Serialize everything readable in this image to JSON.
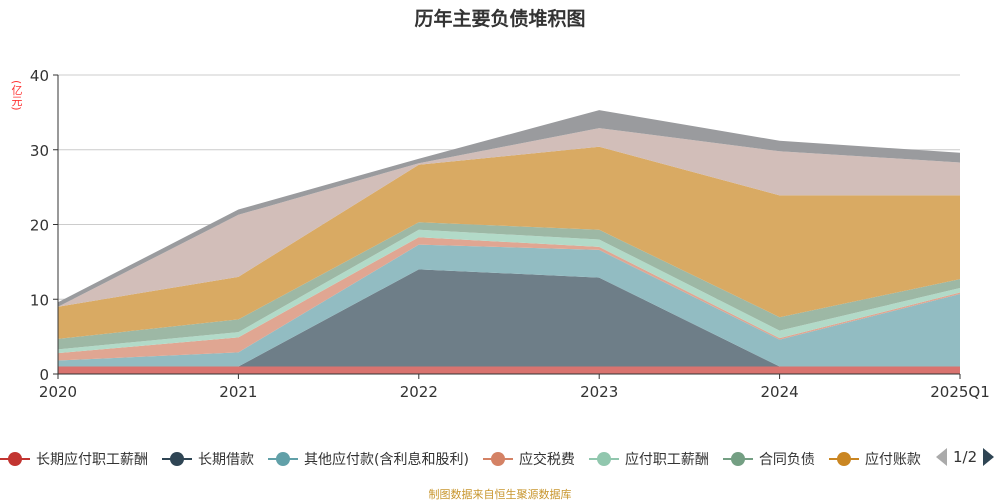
{
  "chart_data": {
    "type": "area",
    "stacked": true,
    "title": "历年主要负债堆积图",
    "ylabel": "(亿元)",
    "xlabel": "",
    "ylim": [
      0,
      40
    ],
    "yticks": [
      "0",
      "10",
      "20",
      "30",
      "40"
    ],
    "categories": [
      "2020",
      "2021",
      "2022",
      "2023",
      "2024",
      "2025Q1"
    ],
    "grid": true,
    "legend_position": "bottom",
    "series": [
      {
        "name": "长期应付职工薪酬",
        "color": "#c23531",
        "fill": "#d9736f",
        "values": [
          1.0,
          1.0,
          1.0,
          1.0,
          1.0,
          1.0
        ]
      },
      {
        "name": "长期借款",
        "color": "#2f4554",
        "fill": "#6e7e88",
        "values": [
          0,
          0,
          13.0,
          11.9,
          0,
          0
        ]
      },
      {
        "name": "其他应付款(含利息和股利)",
        "color": "#61a0a8",
        "fill": "#92bcc2",
        "values": [
          0.8,
          1.9,
          3.3,
          3.7,
          3.6,
          9.7
        ]
      },
      {
        "name": "应交税费",
        "color": "#d48265",
        "fill": "#e0a692",
        "values": [
          1.0,
          2.0,
          1.0,
          0.4,
          0.2,
          0.2
        ]
      },
      {
        "name": "应付职工薪酬",
        "color": "#91c7ae",
        "fill": "#b2dac8",
        "values": [
          0.5,
          0.7,
          1.0,
          1.0,
          1.0,
          0.6
        ]
      },
      {
        "name": "合同负债",
        "color": "#749f83",
        "fill": "#9db8a5",
        "values": [
          1.4,
          1.7,
          1.0,
          1.3,
          1.8,
          1.2
        ]
      },
      {
        "name": "应付账款",
        "color": "#ca8622",
        "fill": "#d9aa63",
        "values": [
          4.3,
          5.7,
          7.7,
          11.1,
          16.3,
          11.2
        ]
      },
      {
        "name": "",
        "color": "#bda29a",
        "fill": "#d2beb9",
        "values": [
          0,
          8.3,
          0.2,
          2.5,
          5.9,
          4.4
        ]
      },
      {
        "name": "",
        "color": "#6e7074",
        "fill": "#9a9b9e",
        "values": [
          0.6,
          0.7,
          0.6,
          2.4,
          1.4,
          1.3
        ]
      }
    ]
  },
  "legend": {
    "items": [
      "长期应付职工薪酬",
      "长期借款",
      "其他应付款(含利息和股利)",
      "应交税费",
      "应付职工薪酬",
      "合同负债",
      "应付账款"
    ],
    "page": "1/2"
  },
  "source": "制图数据来自恒生聚源数据库"
}
